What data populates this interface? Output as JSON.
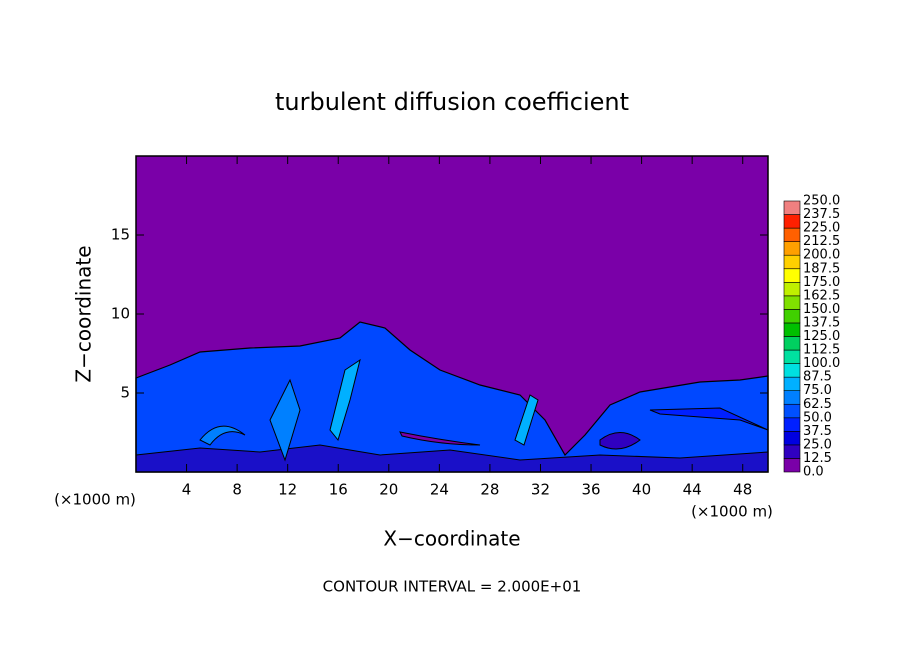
{
  "chart_data": {
    "type": "contour",
    "title": "turbulent diffusion coefficient",
    "xlabel": "X−coordinate",
    "ylabel": "Z−coordinate",
    "x_unit_label": "(×1000 m)",
    "footer": "CONTOUR INTERVAL = 2.000E+01",
    "xlim": [
      0,
      50
    ],
    "xticks": [
      4,
      8,
      12,
      16,
      20,
      24,
      28,
      32,
      36,
      40,
      44,
      48
    ],
    "ylim": [
      0,
      20
    ],
    "yticks": [
      5,
      10,
      15
    ],
    "colorbar": {
      "levels": [
        {
          "value": 0,
          "label": "0.0"
        },
        12.5,
        {
          "value": 25,
          "label": "25.0"
        },
        37.5,
        {
          "value": 50,
          "label": "50.0"
        },
        62.5,
        {
          "value": 75,
          "label": "75.0"
        },
        87.5,
        {
          "value": 100,
          "label": "100.0"
        },
        112.5,
        {
          "value": 125,
          "label": "125.0"
        },
        137.5,
        {
          "value": 150,
          "label": "150.0"
        },
        162.5,
        {
          "value": 175,
          "label": "175.0"
        },
        187.5,
        {
          "value": 200,
          "label": "200.0"
        },
        212.5,
        {
          "value": 225,
          "label": "225.0"
        },
        237.5,
        {
          "value": 250,
          "label": "250.0"
        }
      ],
      "colors": [
        "#7a00a8",
        "#3000c0",
        "#0000e0",
        "#0020ff",
        "#0050ff",
        "#0080ff",
        "#00b0ff",
        "#00e0e0",
        "#00e0a0",
        "#00d060",
        "#00c000",
        "#40d000",
        "#80e000",
        "#c0f000",
        "#ffff00",
        "#ffd000",
        "#ffa000",
        "#ff6000",
        "#ff2000",
        "#f08080"
      ]
    }
  }
}
